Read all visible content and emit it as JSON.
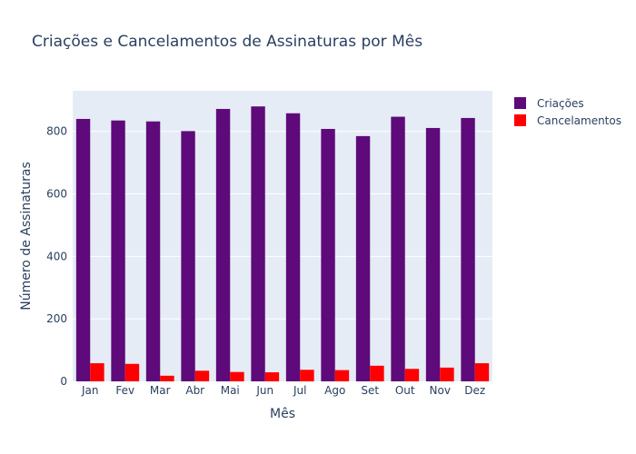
{
  "chart_data": {
    "type": "bar",
    "title": "Criações e Cancelamentos de Assinaturas por Mês",
    "xlabel": "Mês",
    "ylabel": "Número de Assinaturas",
    "categories": [
      "Jan",
      "Fev",
      "Mar",
      "Abr",
      "Mai",
      "Jun",
      "Jul",
      "Ago",
      "Set",
      "Out",
      "Nov",
      "Dez"
    ],
    "series": [
      {
        "name": "Criações",
        "color": "#5e0a7a",
        "values": [
          840,
          835,
          832,
          801,
          872,
          880,
          858,
          808,
          785,
          847,
          811,
          843
        ]
      },
      {
        "name": "Cancelamentos",
        "color": "#ff0000",
        "values": [
          58,
          56,
          18,
          34,
          30,
          29,
          37,
          36,
          50,
          40,
          44,
          58
        ]
      }
    ],
    "ylim": [
      0,
      930
    ],
    "yticks": [
      0,
      200,
      400,
      600,
      800
    ],
    "grid": true,
    "legend": "top-right",
    "plot_background": "#e5ecf6"
  }
}
